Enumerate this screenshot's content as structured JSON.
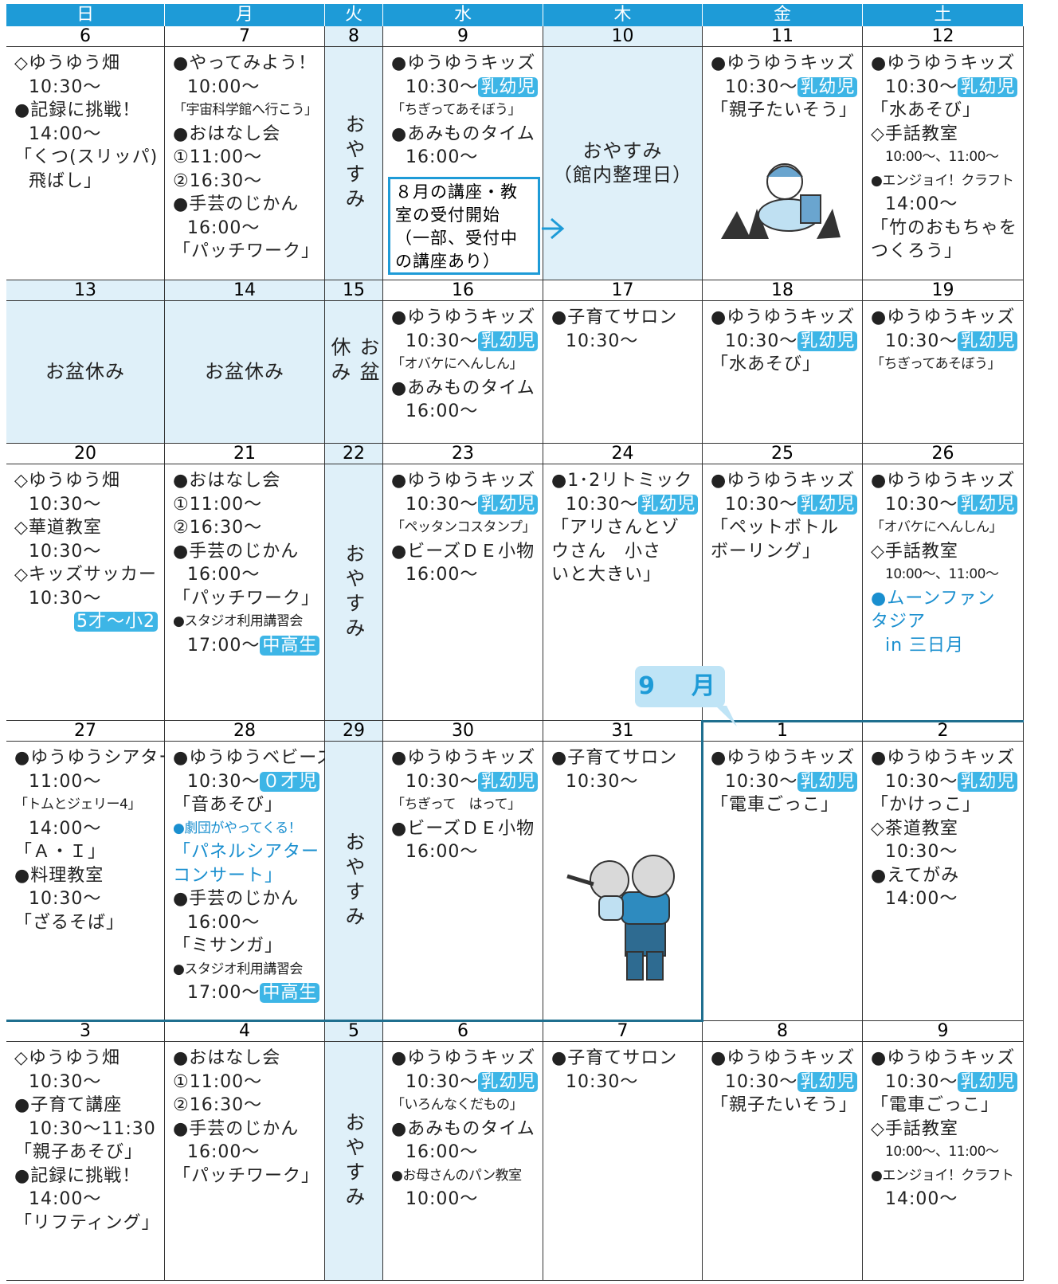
{
  "weekdays": [
    "日",
    "月",
    "火",
    "水",
    "木",
    "金",
    "土"
  ],
  "month_label": "9　月",
  "notice": [
    "８月の講座・教",
    "室の受付開始",
    "（一部、受付中",
    "の講座あり）"
  ],
  "weeks": [
    [
      {
        "date": "6",
        "lines": [
          "◇ゆうゆう畑",
          "10:30～",
          "●記録に挑戦！",
          "14:00～",
          "「くつ(スリッパ)",
          "飛ばし」"
        ]
      },
      {
        "date": "7",
        "lines": [
          "●やってみよう！",
          "10:00～",
          {
            "text": "「宇宙科学館へ行こう」",
            "small": true
          },
          "●おはなし会",
          "①11:00～",
          "②16:30～",
          "●手芸のじかん",
          "16:00～",
          "「パッチワーク」"
        ]
      },
      {
        "date": "8",
        "lines": [
          "おやすみ"
        ]
      },
      {
        "date": "9",
        "lines": [
          "●ゆうゆうキッズ",
          {
            "text": "10:30～",
            "badge": "乳幼児"
          },
          {
            "text": "「ちぎってあそぼう」",
            "small": true
          },
          "●あみものタイム",
          "16:00～"
        ]
      },
      {
        "date": "10",
        "closed": true,
        "lines": [
          "おやすみ",
          "（館内整理日）"
        ]
      },
      {
        "date": "11",
        "lines": [
          "●ゆうゆうキッズ",
          {
            "text": "10:30～",
            "badge": "乳幼児"
          },
          "「親子たいそう」"
        ]
      },
      {
        "date": "12",
        "lines": [
          "●ゆうゆうキッズ",
          {
            "text": "10:30～",
            "badge": "乳幼児"
          },
          "「水あそび」",
          "◇手話教室",
          {
            "text": "10:00～、11:00～",
            "small": true
          },
          {
            "text": "●エンジョイ！クラフト",
            "small": true
          },
          "14:00～",
          "「竹のおもちゃを",
          "つくろう」"
        ]
      }
    ],
    [
      {
        "date": "13",
        "closed": true,
        "lines": [
          "お盆休み"
        ]
      },
      {
        "date": "14",
        "closed": true,
        "lines": [
          "お盆休み"
        ]
      },
      {
        "date": "15",
        "lines": [
          "お盆休み"
        ]
      },
      {
        "date": "16",
        "lines": [
          "●ゆうゆうキッズ",
          {
            "text": "10:30～",
            "badge": "乳幼児"
          },
          {
            "text": "「オバケにへんしん」",
            "small": true
          },
          "●あみものタイム",
          "16:00～"
        ]
      },
      {
        "date": "17",
        "lines": [
          "●子育てサロン",
          "10:30～"
        ]
      },
      {
        "date": "18",
        "lines": [
          "●ゆうゆうキッズ",
          {
            "text": "10:30～",
            "badge": "乳幼児"
          },
          "「水あそび」"
        ]
      },
      {
        "date": "19",
        "lines": [
          "●ゆうゆうキッズ",
          {
            "text": "10:30～",
            "badge": "乳幼児"
          },
          {
            "text": "「ちぎってあそぼう」",
            "small": true
          }
        ]
      }
    ],
    [
      {
        "date": "20",
        "lines": [
          "◇ゆうゆう畑",
          "10:30～",
          "◇華道教室",
          "10:30～",
          "◇キッズサッカー",
          "10:30～",
          {
            "badge": "5才～小2"
          }
        ]
      },
      {
        "date": "21",
        "lines": [
          "●おはなし会",
          "①11:00～",
          "②16:30～",
          "●手芸のじかん",
          "16:00～",
          "「パッチワーク」",
          {
            "text": "●スタジオ利用講習会",
            "small": true
          },
          {
            "text": "17:00～",
            "badge": "中高生"
          }
        ]
      },
      {
        "date": "22",
        "lines": [
          "おやすみ"
        ]
      },
      {
        "date": "23",
        "lines": [
          "●ゆうゆうキッズ",
          {
            "text": "10:30～",
            "badge": "乳幼児"
          },
          {
            "text": "「ペッタンコスタンプ」",
            "small": true
          },
          "●ビーズＤＥ小物",
          "16:00～"
        ]
      },
      {
        "date": "24",
        "lines": [
          "●1･2リトミック",
          {
            "text": "10:30～",
            "badge": "乳幼児"
          },
          "「アリさんとゾ",
          "ウさん　小さ",
          "いと大きい」"
        ]
      },
      {
        "date": "25",
        "lines": [
          "●ゆうゆうキッズ",
          {
            "text": "10:30～",
            "badge": "乳幼児"
          },
          "「ペットボトル",
          "ボーリング」"
        ]
      },
      {
        "date": "26",
        "lines": [
          "●ゆうゆうキッズ",
          {
            "text": "10:30～",
            "badge": "乳幼児"
          },
          {
            "text": "「オバケにへんしん」",
            "small": true
          },
          "◇手話教室",
          {
            "text": "10:00～、11:00～",
            "small": true
          },
          {
            "text": "●ムーンファン",
            "color": "#1a8fcf"
          },
          {
            "text": "タジア",
            "color": "#1a8fcf"
          },
          {
            "text": "in 三日月",
            "color": "#1a8fcf"
          }
        ]
      }
    ],
    [
      {
        "date": "27",
        "lines": [
          "●ゆうゆうシアター",
          "11:00～",
          {
            "text": "「トムとジェリー4」",
            "small": true
          },
          "14:00～",
          "「Ａ・Ｉ」",
          "●料理教室",
          "10:30～",
          "「ざるそば」"
        ]
      },
      {
        "date": "28",
        "lines": [
          "●ゆうゆうベビーズ",
          {
            "text": "10:30～",
            "badge": "０才児"
          },
          "「音あそび」",
          {
            "text": "●劇団がやってくる！",
            "small": true,
            "color": "#1a8fcf"
          },
          {
            "text": "「パネルシアター",
            "color": "#1a8fcf"
          },
          {
            "text": "コンサート」",
            "color": "#1a8fcf"
          },
          "●手芸のじかん",
          "16:00～",
          "「ミサンガ」",
          {
            "text": "●スタジオ利用講習会",
            "small": true
          },
          {
            "text": "17:00～",
            "badge": "中高生"
          }
        ]
      },
      {
        "date": "29",
        "lines": [
          "おやすみ"
        ]
      },
      {
        "date": "30",
        "lines": [
          "●ゆうゆうキッズ",
          {
            "text": "10:30～",
            "badge": "乳幼児"
          },
          {
            "text": "「ちぎって　はって」",
            "small": true
          },
          "●ビーズＤＥ小物",
          "16:00～"
        ]
      },
      {
        "date": "31",
        "lines": [
          "●子育てサロン",
          "10:30～"
        ]
      },
      {
        "date": "1",
        "lines": [
          "●ゆうゆうキッズ",
          {
            "text": "10:30～",
            "badge": "乳幼児"
          },
          "「電車ごっこ」"
        ]
      },
      {
        "date": "2",
        "lines": [
          "●ゆうゆうキッズ",
          {
            "text": "10:30～",
            "badge": "乳幼児"
          },
          "「かけっこ」",
          "◇茶道教室",
          "10:30～",
          "●えてがみ",
          "14:00～"
        ]
      }
    ],
    [
      {
        "date": "3",
        "lines": [
          "◇ゆうゆう畑",
          "10:30～",
          "●子育て講座",
          "10:30～11:30",
          "「親子あそび」",
          "●記録に挑戦！",
          "14:00～",
          "「リフティング」"
        ]
      },
      {
        "date": "4",
        "lines": [
          "●おはなし会",
          "①11:00～",
          "②16:30～",
          "●手芸のじかん",
          "16:00～",
          "「パッチワーク」"
        ]
      },
      {
        "date": "5",
        "lines": [
          "おやすみ"
        ]
      },
      {
        "date": "6",
        "lines": [
          "●ゆうゆうキッズ",
          {
            "text": "10:30～",
            "badge": "乳幼児"
          },
          {
            "text": "「いろんなくだもの」",
            "small": true
          },
          "●あみものタイム",
          "16:00～",
          {
            "text": "●お母さんのパン教室",
            "small": true
          },
          "10:00～"
        ]
      },
      {
        "date": "7",
        "lines": [
          "●子育てサロン",
          "10:30～"
        ]
      },
      {
        "date": "8",
        "lines": [
          "●ゆうゆうキッズ",
          {
            "text": "10:30～",
            "badge": "乳幼児"
          },
          "「親子たいそう」"
        ]
      },
      {
        "date": "9",
        "lines": [
          "●ゆうゆうキッズ",
          {
            "text": "10:30～",
            "badge": "乳幼児"
          },
          "「電車ごっこ」",
          "◇手話教室",
          {
            "text": "10:00～、11:00～",
            "small": true
          },
          {
            "text": "●エンジョイ！クラフト",
            "small": true
          },
          "14:00～"
        ]
      }
    ]
  ]
}
